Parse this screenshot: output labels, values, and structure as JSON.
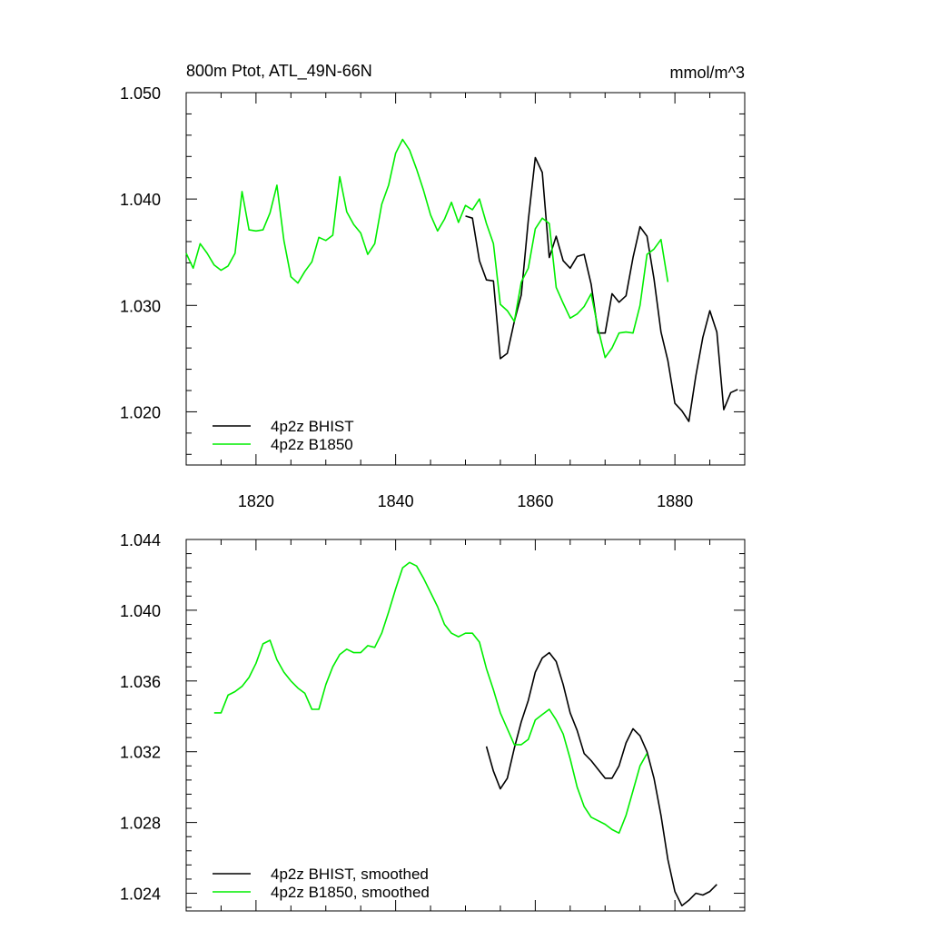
{
  "chart_data": [
    {
      "type": "line",
      "title": "800m Ptot, ATL_49N-66N",
      "units_label": "mmol/m^3",
      "xlim": [
        1810,
        1890
      ],
      "ylim": [
        1.015,
        1.05
      ],
      "x_ticks": [
        1820,
        1840,
        1860,
        1880
      ],
      "x_tick_labels": [
        "1820",
        "1840",
        "1860",
        "1880"
      ],
      "y_ticks": [
        1.02,
        1.03,
        1.04,
        1.05
      ],
      "y_tick_labels": [
        "1.020",
        "1.030",
        "1.040",
        "1.050"
      ],
      "legend_position": "bottom-left",
      "series": [
        {
          "name": "4p2z BHIST",
          "color": "#000000",
          "x": [
            1850,
            1851,
            1852,
            1853,
            1854,
            1855,
            1856,
            1857,
            1858,
            1859,
            1860,
            1861,
            1862,
            1863,
            1864,
            1865,
            1866,
            1867,
            1868,
            1869,
            1870,
            1871,
            1872,
            1873,
            1874,
            1875,
            1876,
            1877,
            1878,
            1879,
            1880,
            1881,
            1882,
            1883,
            1884,
            1885,
            1886,
            1887,
            1888,
            1889
          ],
          "values": [
            1.0384,
            1.0382,
            1.0342,
            1.0324,
            1.0323,
            1.025,
            1.0255,
            1.0285,
            1.031,
            1.038,
            1.0439,
            1.0425,
            1.0345,
            1.0365,
            1.0342,
            1.0335,
            1.0346,
            1.0348,
            1.032,
            1.0274,
            1.0274,
            1.0311,
            1.0303,
            1.0309,
            1.0345,
            1.0374,
            1.0365,
            1.0325,
            1.0275,
            1.0248,
            1.0208,
            1.0201,
            1.0191,
            1.0234,
            1.027,
            1.0295,
            1.0275,
            1.0202,
            1.0218,
            1.0221
          ]
        },
        {
          "name": "4p2z B1850",
          "color": "#00ee00",
          "x": [
            1810,
            1811,
            1812,
            1813,
            1814,
            1815,
            1816,
            1817,
            1818,
            1819,
            1820,
            1821,
            1822,
            1823,
            1824,
            1825,
            1826,
            1827,
            1828,
            1829,
            1830,
            1831,
            1832,
            1833,
            1834,
            1835,
            1836,
            1837,
            1838,
            1839,
            1840,
            1841,
            1842,
            1843,
            1844,
            1845,
            1846,
            1847,
            1848,
            1849,
            1850,
            1851,
            1852,
            1853,
            1854,
            1855,
            1856,
            1857,
            1858,
            1859,
            1860,
            1861,
            1862,
            1863,
            1864,
            1865,
            1866,
            1867,
            1868,
            1869,
            1870,
            1871,
            1872,
            1873,
            1874,
            1875,
            1876,
            1877,
            1878,
            1879
          ],
          "values": [
            1.0349,
            1.0335,
            1.0358,
            1.0349,
            1.0338,
            1.0333,
            1.0337,
            1.0349,
            1.0407,
            1.0371,
            1.037,
            1.0371,
            1.0387,
            1.0413,
            1.0361,
            1.0327,
            1.0321,
            1.0332,
            1.0341,
            1.0364,
            1.0361,
            1.0366,
            1.0421,
            1.0388,
            1.0376,
            1.0368,
            1.0348,
            1.0358,
            1.0395,
            1.0413,
            1.0443,
            1.0456,
            1.0446,
            1.0428,
            1.0408,
            1.0385,
            1.037,
            1.0381,
            1.0397,
            1.0378,
            1.0394,
            1.039,
            1.04,
            1.0377,
            1.0358,
            1.0301,
            1.0295,
            1.0285,
            1.0322,
            1.0335,
            1.0372,
            1.0382,
            1.0377,
            1.0317,
            1.0302,
            1.0288,
            1.0292,
            1.0299,
            1.0311,
            1.0278,
            1.0251,
            1.026,
            1.0274,
            1.0275,
            1.0274,
            1.03,
            1.0348,
            1.0353,
            1.0362,
            1.0322
          ]
        }
      ]
    },
    {
      "type": "line",
      "title": "",
      "xlim": [
        1810,
        1890
      ],
      "ylim": [
        1.023,
        1.044
      ],
      "x_ticks": [
        1820,
        1840,
        1860,
        1880
      ],
      "y_ticks": [
        1.024,
        1.028,
        1.032,
        1.036,
        1.04,
        1.044
      ],
      "y_tick_labels": [
        "1.024",
        "1.028",
        "1.032",
        "1.036",
        "1.040",
        "1.044"
      ],
      "legend_position": "bottom-left",
      "series": [
        {
          "name": "4p2z BHIST, smoothed",
          "color": "#000000",
          "x": [
            1853,
            1854,
            1855,
            1856,
            1857,
            1858,
            1859,
            1860,
            1861,
            1862,
            1863,
            1864,
            1865,
            1866,
            1867,
            1868,
            1869,
            1870,
            1871,
            1872,
            1873,
            1874,
            1875,
            1876,
            1877,
            1878,
            1879,
            1880,
            1881,
            1882,
            1883,
            1884,
            1885,
            1886
          ],
          "values": [
            1.0323,
            1.0309,
            1.0299,
            1.0305,
            1.0322,
            1.0337,
            1.0349,
            1.0365,
            1.0373,
            1.0376,
            1.0371,
            1.0358,
            1.0342,
            1.0332,
            1.0319,
            1.0315,
            1.031,
            1.0305,
            1.0305,
            1.0312,
            1.0325,
            1.0333,
            1.0329,
            1.032,
            1.0305,
            1.0284,
            1.0259,
            1.0241,
            1.0233,
            1.0236,
            1.024,
            1.0239,
            1.0241,
            1.0245
          ]
        },
        {
          "name": "4p2z B1850, smoothed",
          "color": "#00ee00",
          "x": [
            1814,
            1815,
            1816,
            1817,
            1818,
            1819,
            1820,
            1821,
            1822,
            1823,
            1824,
            1825,
            1826,
            1827,
            1828,
            1829,
            1830,
            1831,
            1832,
            1833,
            1834,
            1835,
            1836,
            1837,
            1838,
            1839,
            1840,
            1841,
            1842,
            1843,
            1844,
            1845,
            1846,
            1847,
            1848,
            1849,
            1850,
            1851,
            1852,
            1853,
            1854,
            1855,
            1856,
            1857,
            1858,
            1859,
            1860,
            1861,
            1862,
            1863,
            1864,
            1865,
            1866,
            1867,
            1868,
            1869,
            1870,
            1871,
            1872,
            1873,
            1874,
            1875,
            1876
          ],
          "values": [
            1.0342,
            1.0342,
            1.0352,
            1.0354,
            1.0357,
            1.0362,
            1.037,
            1.0381,
            1.0383,
            1.0372,
            1.0365,
            1.036,
            1.0356,
            1.0353,
            1.0344,
            1.0344,
            1.0358,
            1.0368,
            1.0375,
            1.0378,
            1.0376,
            1.0376,
            1.038,
            1.0379,
            1.0387,
            1.0399,
            1.0412,
            1.0424,
            1.0427,
            1.0425,
            1.0418,
            1.041,
            1.0402,
            1.0392,
            1.0387,
            1.0385,
            1.0387,
            1.0387,
            1.0382,
            1.0367,
            1.0355,
            1.0342,
            1.0333,
            1.0324,
            1.0324,
            1.0327,
            1.0338,
            1.0341,
            1.0344,
            1.0338,
            1.033,
            1.0316,
            1.03,
            1.0289,
            1.0283,
            1.0281,
            1.0279,
            1.0276,
            1.0274,
            1.0284,
            1.0298,
            1.0312,
            1.0319
          ]
        }
      ]
    }
  ]
}
